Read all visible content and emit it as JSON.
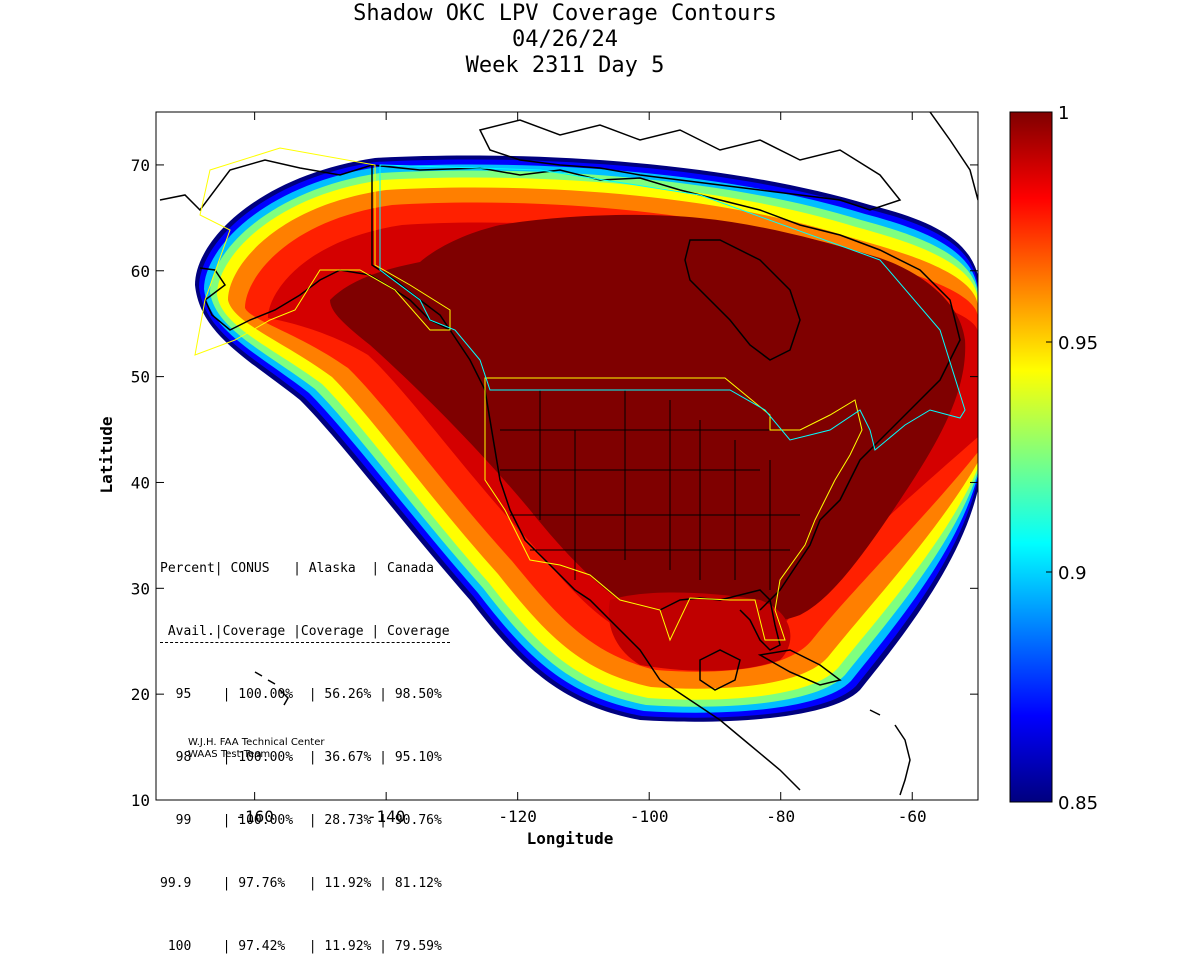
{
  "title": {
    "line1": "Shadow OKC LPV Coverage Contours",
    "line2": "04/26/24",
    "line3": "Week 2311 Day 5"
  },
  "axes": {
    "xlabel": "Longitude",
    "ylabel": "Latitude",
    "xlim": [
      -175,
      -50
    ],
    "ylim": [
      10,
      75
    ],
    "x_ticks": [
      {
        "value": -160,
        "label": "-160"
      },
      {
        "value": -140,
        "label": "-140"
      },
      {
        "value": -120,
        "label": "-120"
      },
      {
        "value": -100,
        "label": "-100"
      },
      {
        "value": -80,
        "label": "-80"
      },
      {
        "value": -60,
        "label": "-60"
      }
    ],
    "y_ticks": [
      {
        "value": 10,
        "label": "10"
      },
      {
        "value": 20,
        "label": "20"
      },
      {
        "value": 30,
        "label": "30"
      },
      {
        "value": 40,
        "label": "40"
      },
      {
        "value": 50,
        "label": "50"
      },
      {
        "value": 60,
        "label": "60"
      },
      {
        "value": 70,
        "label": "70"
      }
    ]
  },
  "colorbar": {
    "min": 0.85,
    "max": 1,
    "ticks": [
      {
        "value": 1,
        "label": "1"
      },
      {
        "value": 0.95,
        "label": "0.95"
      },
      {
        "value": 0.9,
        "label": "0.9"
      },
      {
        "value": 0.85,
        "label": "0.85"
      }
    ],
    "colors": [
      "#00007f",
      "#0000ff",
      "#007fff",
      "#00ffff",
      "#7fff7f",
      "#ffff00",
      "#ff7f00",
      "#ff0000",
      "#7f0000"
    ]
  },
  "stats_table": {
    "header1": [
      "Percent",
      "CONUS",
      "Alaska",
      "Canada"
    ],
    "header2": [
      "Avail.",
      "Coverage",
      "Coverage",
      "Coverage"
    ],
    "rows": [
      [
        "95",
        "100.00%",
        "56.26%",
        "98.50%"
      ],
      [
        "98",
        "100.00%",
        "36.67%",
        "95.10%"
      ],
      [
        "99",
        "100.00%",
        "28.73%",
        "90.76%"
      ],
      [
        "99.9",
        "97.76%",
        "11.92%",
        "81.12%"
      ],
      [
        "100",
        "97.42%",
        "11.92%",
        "79.59%"
      ]
    ]
  },
  "credit": {
    "line1": "W.J.H. FAA Technical Center",
    "line2": "WAAS Test Team"
  }
}
